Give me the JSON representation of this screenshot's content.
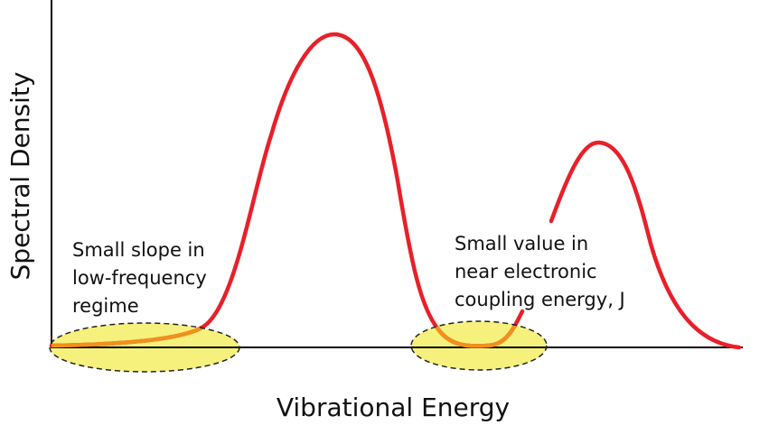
{
  "axes": {
    "y_label": "Spectral Density",
    "x_label": "Vibrational Energy"
  },
  "annotations": [
    {
      "lines": [
        "Small slope in",
        "low-frequency",
        "regime"
      ]
    },
    {
      "lines": [
        "Small value in",
        "near electronic",
        "coupling energy, J"
      ]
    }
  ]
}
